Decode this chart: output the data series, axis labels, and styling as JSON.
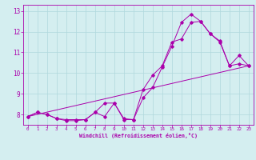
{
  "xlabel": "Windchill (Refroidissement éolien,°C)",
  "bg_color": "#d4eef0",
  "line_color": "#aa00aa",
  "grid_color": "#b0d8dc",
  "xlim": [
    -0.5,
    23.5
  ],
  "ylim": [
    7.5,
    13.3
  ],
  "xticks": [
    0,
    1,
    2,
    3,
    4,
    5,
    6,
    7,
    8,
    9,
    10,
    11,
    12,
    13,
    14,
    15,
    16,
    17,
    18,
    19,
    20,
    21,
    22,
    23
  ],
  "yticks": [
    8,
    9,
    10,
    11,
    12,
    13
  ],
  "line1_x": [
    0,
    1,
    2,
    3,
    4,
    5,
    6,
    7,
    8,
    9,
    10,
    11,
    12,
    13,
    14,
    15,
    16,
    17,
    18,
    19,
    20,
    21,
    22,
    23
  ],
  "line1_y": [
    7.9,
    8.1,
    8.0,
    7.8,
    7.7,
    7.7,
    7.75,
    8.1,
    7.9,
    8.55,
    7.8,
    7.75,
    9.2,
    9.9,
    10.35,
    11.5,
    11.65,
    12.45,
    12.5,
    11.9,
    11.55,
    10.35,
    10.45,
    10.35
  ],
  "line2_x": [
    0,
    1,
    2,
    3,
    4,
    5,
    6,
    7,
    8,
    9,
    10,
    11,
    12,
    13,
    14,
    15,
    16,
    17,
    18,
    19,
    20,
    21,
    22,
    23
  ],
  "line2_y": [
    7.9,
    8.1,
    8.0,
    7.8,
    7.75,
    7.75,
    7.75,
    8.1,
    8.55,
    8.55,
    7.75,
    7.75,
    8.8,
    9.3,
    10.3,
    11.3,
    12.45,
    12.85,
    12.5,
    11.9,
    11.5,
    10.35,
    10.85,
    10.35
  ],
  "line3_x": [
    0,
    23
  ],
  "line3_y": [
    7.9,
    10.35
  ]
}
